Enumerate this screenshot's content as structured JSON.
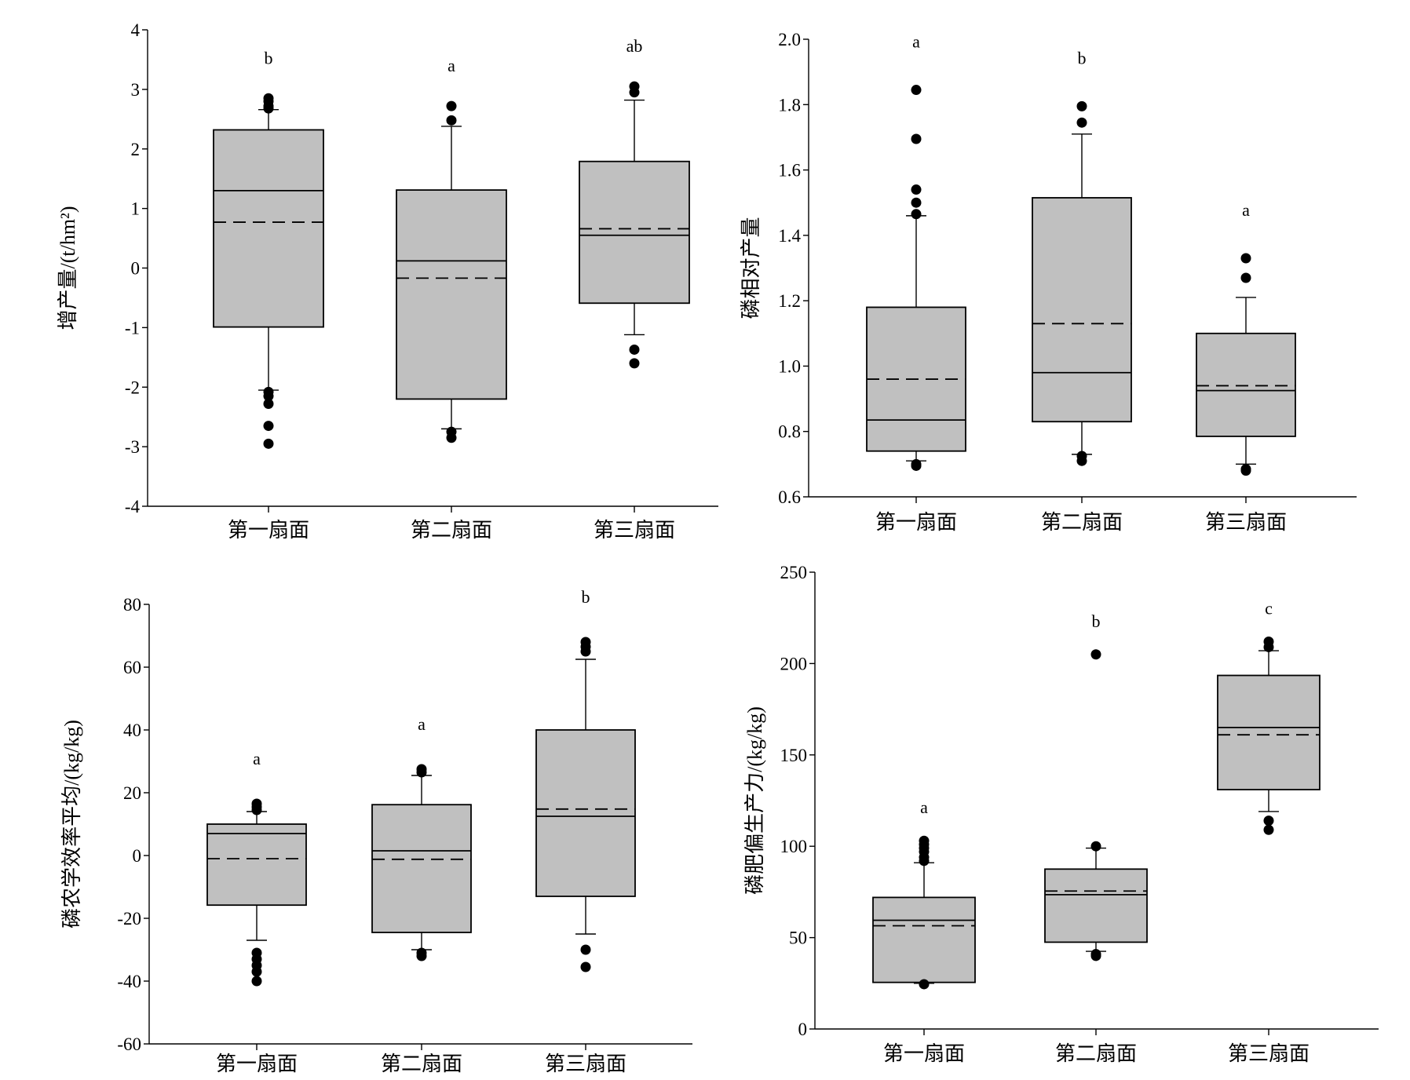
{
  "chart_data": [
    {
      "type": "box",
      "ylabel": "增产量/(t/hm²)",
      "ylim": [
        -4,
        4
      ],
      "yticks": [
        -4,
        -3,
        -2,
        -1,
        0,
        1,
        2,
        3,
        4
      ],
      "ytick_labels": [
        "-4",
        "-3",
        "-2",
        "-1",
        "0",
        "1",
        "2",
        "3",
        "4"
      ],
      "categories": [
        "第一扇面",
        "第二扇面",
        "第三扇面"
      ],
      "boxes": [
        {
          "q1": -0.99,
          "median": 1.3,
          "mean": 0.77,
          "q3": 2.32,
          "whisker_low": -2.05,
          "whisker_high": 2.66,
          "outliers": [
            2.85,
            2.8,
            2.72,
            2.68,
            -2.08,
            -2.15,
            -2.28,
            -2.65,
            -2.95
          ],
          "letter": "b"
        },
        {
          "q1": -2.2,
          "median": 0.12,
          "mean": -0.17,
          "q3": 1.31,
          "whisker_low": -2.7,
          "whisker_high": 2.38,
          "outliers": [
            2.72,
            2.48,
            -2.75,
            -2.85
          ],
          "letter": "a"
        },
        {
          "q1": -0.59,
          "median": 0.55,
          "mean": 0.66,
          "q3": 1.79,
          "whisker_low": -1.12,
          "whisker_high": 2.82,
          "outliers": [
            3.05,
            2.95,
            -1.37,
            -1.6
          ],
          "letter": "ab"
        }
      ]
    },
    {
      "type": "box",
      "ylabel": "磷相对产量",
      "ylim": [
        0.6,
        2.0
      ],
      "yticks": [
        0.6,
        0.8,
        1.0,
        1.2,
        1.4,
        1.6,
        1.8,
        2.0
      ],
      "ytick_labels": [
        "0.6",
        "0.8",
        "1.0",
        "1.2",
        "1.4",
        "1.6",
        "1.8",
        "2.0"
      ],
      "categories": [
        "第一扇面",
        "第二扇面",
        "第三扇面"
      ],
      "boxes": [
        {
          "q1": 0.74,
          "median": 0.835,
          "mean": 0.96,
          "q3": 1.18,
          "whisker_low": 0.71,
          "whisker_high": 1.46,
          "outliers": [
            1.845,
            1.695,
            1.54,
            1.5,
            1.465,
            0.7,
            0.695
          ],
          "letter": "a"
        },
        {
          "q1": 0.83,
          "median": 0.98,
          "mean": 1.13,
          "q3": 1.515,
          "whisker_low": 0.73,
          "whisker_high": 1.71,
          "outliers": [
            1.795,
            1.745,
            0.725,
            0.71
          ],
          "letter": "b"
        },
        {
          "q1": 0.785,
          "median": 0.925,
          "mean": 0.94,
          "q3": 1.1,
          "whisker_low": 0.7,
          "whisker_high": 1.21,
          "outliers": [
            1.33,
            1.27,
            0.685,
            0.68
          ],
          "letter": "a"
        }
      ]
    },
    {
      "type": "box",
      "ylabel": "磷农学效率平均/(kg/kg)",
      "ylim": [
        -60,
        80
      ],
      "yticks": [
        -60,
        -40,
        -20,
        0,
        20,
        40,
        60,
        80
      ],
      "ytick_labels": [
        "-60",
        "-40",
        "-20",
        "0",
        "20",
        "40",
        "60",
        "80"
      ],
      "categories": [
        "第一扇面",
        "第二扇面",
        "第三扇面"
      ],
      "boxes": [
        {
          "q1": -15.8,
          "median": 7,
          "mean": -1,
          "q3": 10,
          "whisker_low": -27,
          "whisker_high": 14,
          "outliers": [
            16.5,
            15.5,
            14.5,
            -31,
            -33,
            -35,
            -37,
            -40
          ],
          "letter": "a"
        },
        {
          "q1": -24.5,
          "median": 1.5,
          "mean": -1.2,
          "q3": 16.2,
          "whisker_low": -30,
          "whisker_high": 25.5,
          "outliers": [
            27.5,
            26.5,
            -31,
            -32
          ],
          "letter": "a"
        },
        {
          "q1": -13,
          "median": 12.5,
          "mean": 14.8,
          "q3": 40,
          "whisker_low": -25,
          "whisker_high": 62.5,
          "outliers": [
            68,
            66.5,
            65,
            -30,
            -35.5
          ],
          "letter": "b"
        }
      ]
    },
    {
      "type": "box",
      "ylabel": "磷肥偏生产力/(kg/kg)",
      "ylim": [
        0,
        250
      ],
      "yticks": [
        0,
        50,
        100,
        150,
        200,
        250
      ],
      "ytick_labels": [
        "0",
        "50",
        "100",
        "150",
        "200",
        "250"
      ],
      "categories": [
        "第一扇面",
        "第二扇面",
        "第三扇面"
      ],
      "boxes": [
        {
          "q1": 25.5,
          "median": 59.5,
          "mean": 56.5,
          "q3": 72,
          "whisker_low": 25,
          "whisker_high": 91,
          "outliers": [
            103,
            101,
            99,
            97,
            94,
            92,
            24.5
          ],
          "letter": "a"
        },
        {
          "q1": 47.5,
          "median": 73.5,
          "mean": 75.5,
          "q3": 87.5,
          "whisker_low": 42.5,
          "whisker_high": 99,
          "outliers": [
            205,
            100,
            41,
            40
          ],
          "letter": "b"
        },
        {
          "q1": 131,
          "median": 165,
          "mean": 161,
          "q3": 193.5,
          "whisker_low": 119,
          "whisker_high": 207,
          "outliers": [
            212,
            209,
            114,
            109
          ],
          "letter": "c"
        }
      ]
    }
  ]
}
